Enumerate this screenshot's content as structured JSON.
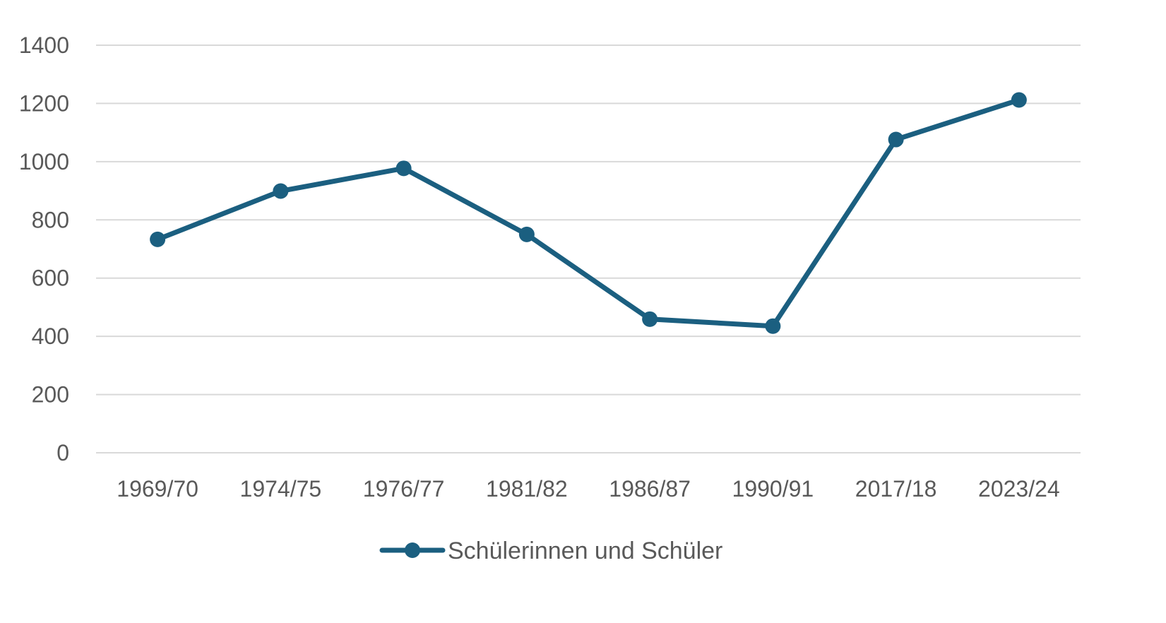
{
  "chart_data": {
    "type": "line",
    "categories": [
      "1969/70",
      "1974/75",
      "1976/77",
      "1981/82",
      "1986/87",
      "1990/91",
      "2017/18",
      "2023/24"
    ],
    "series": [
      {
        "name": "Schülerinnen und Schüler",
        "values": [
          733,
          899,
          977,
          750,
          459,
          435,
          1076,
          1212
        ],
        "color": "#1b5f80"
      }
    ],
    "ylim": [
      0,
      1400
    ],
    "yticks": [
      0,
      200,
      400,
      600,
      800,
      1000,
      1200,
      1400
    ],
    "grid": true,
    "legend_position": "bottom-center",
    "gridline_color": "#d9d9d9",
    "label_color": "#595959"
  }
}
